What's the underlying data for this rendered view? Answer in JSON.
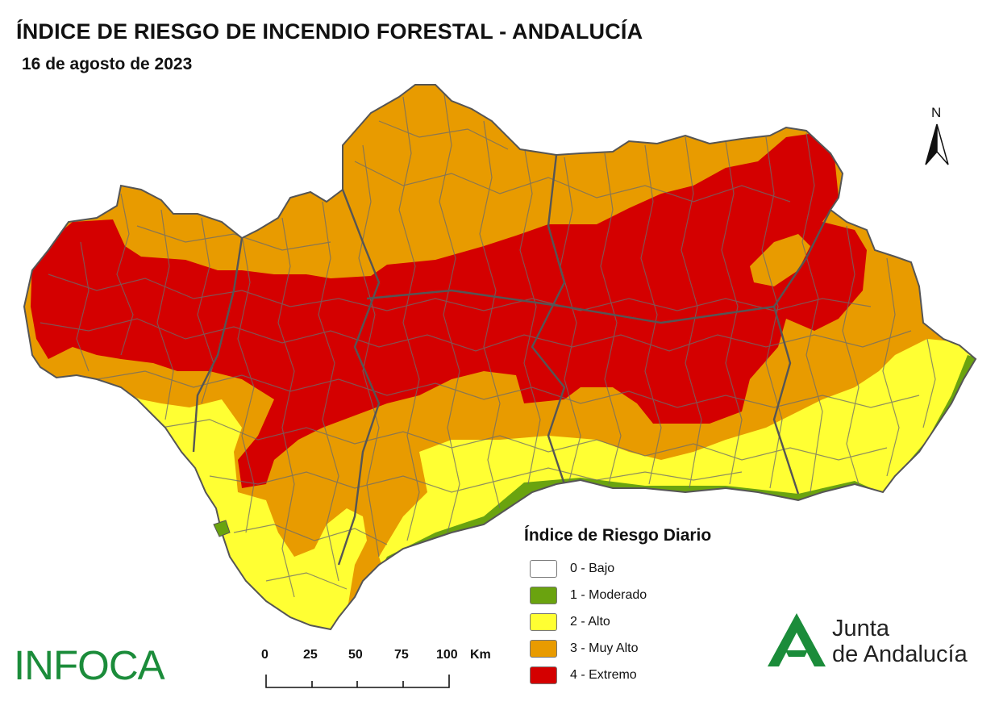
{
  "header": {
    "title": "ÍNDICE DE RIESGO DE INCENDIO FORESTAL - ANDALUCÍA",
    "date": "16 de agosto de 2023"
  },
  "map": {
    "region": "Andalucía",
    "north_label": "N"
  },
  "legend": {
    "title": "Índice de Riesgo Diario",
    "items": [
      {
        "label": "0 - Bajo",
        "color": "#ffffff"
      },
      {
        "label": "1 - Moderado",
        "color": "#6aa30f"
      },
      {
        "label": "2 - Alto",
        "color": "#ffff33"
      },
      {
        "label": "3 - Muy Alto",
        "color": "#e89b00"
      },
      {
        "label": "4 - Extremo",
        "color": "#d40000"
      }
    ]
  },
  "scale_bar": {
    "labels": [
      "0",
      "25",
      "50",
      "75",
      "100"
    ],
    "unit": "Km"
  },
  "logos": {
    "infoca": "INFOCA",
    "junta_line1": "Junta",
    "junta_line2": "de Andalucía",
    "junta_color": "#1b8c3a"
  }
}
